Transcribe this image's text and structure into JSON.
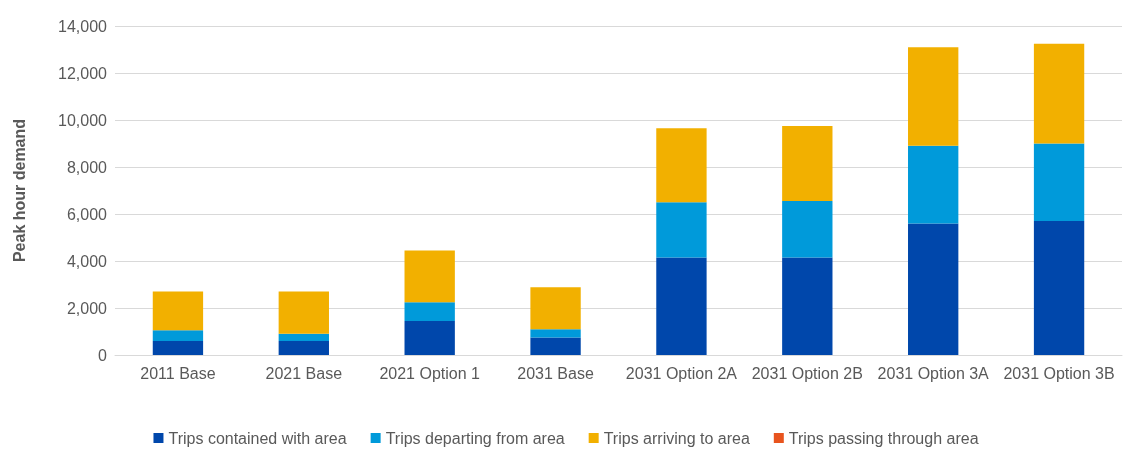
{
  "chart_data": {
    "type": "bar",
    "stacked": true,
    "ylabel": "Peak hour demand",
    "categories": [
      "2011 Base",
      "2021 Base",
      "2021 Option 1",
      "2031 Base",
      "2031 Option 2A",
      "2031 Option 2B",
      "2031 Option 3A",
      "2031 Option 3B"
    ],
    "series": [
      {
        "name": "Trips contained with area",
        "color": "#0047ab",
        "values": [
          600,
          600,
          1450,
          750,
          4150,
          4150,
          5600,
          5700
        ]
      },
      {
        "name": "Trips departing from area",
        "color": "#009ada",
        "values": [
          450,
          300,
          800,
          350,
          2350,
          2400,
          3300,
          3300
        ]
      },
      {
        "name": "Trips arriving to area",
        "color": "#f2b000",
        "values": [
          1650,
          1800,
          2200,
          1780,
          3150,
          3200,
          4200,
          4250
        ]
      },
      {
        "name": "Trips passing through area",
        "color": "#e8541e",
        "values": [
          0,
          0,
          0,
          0,
          0,
          0,
          0,
          0
        ]
      }
    ],
    "ylim": [
      0,
      14000
    ],
    "yticks": [
      0,
      {
        "value": 2000,
        "label": "2,000"
      },
      {
        "value": 4000,
        "label": "4,000"
      },
      {
        "value": 6000,
        "label": "6,000"
      },
      {
        "value": 8000,
        "label": "8,000"
      },
      {
        "value": 10000,
        "label": "10,000"
      },
      {
        "value": 12000,
        "label": "12,000"
      },
      {
        "value": 14000,
        "label": "14,000"
      }
    ],
    "grid": "y",
    "legend": "bottom"
  }
}
